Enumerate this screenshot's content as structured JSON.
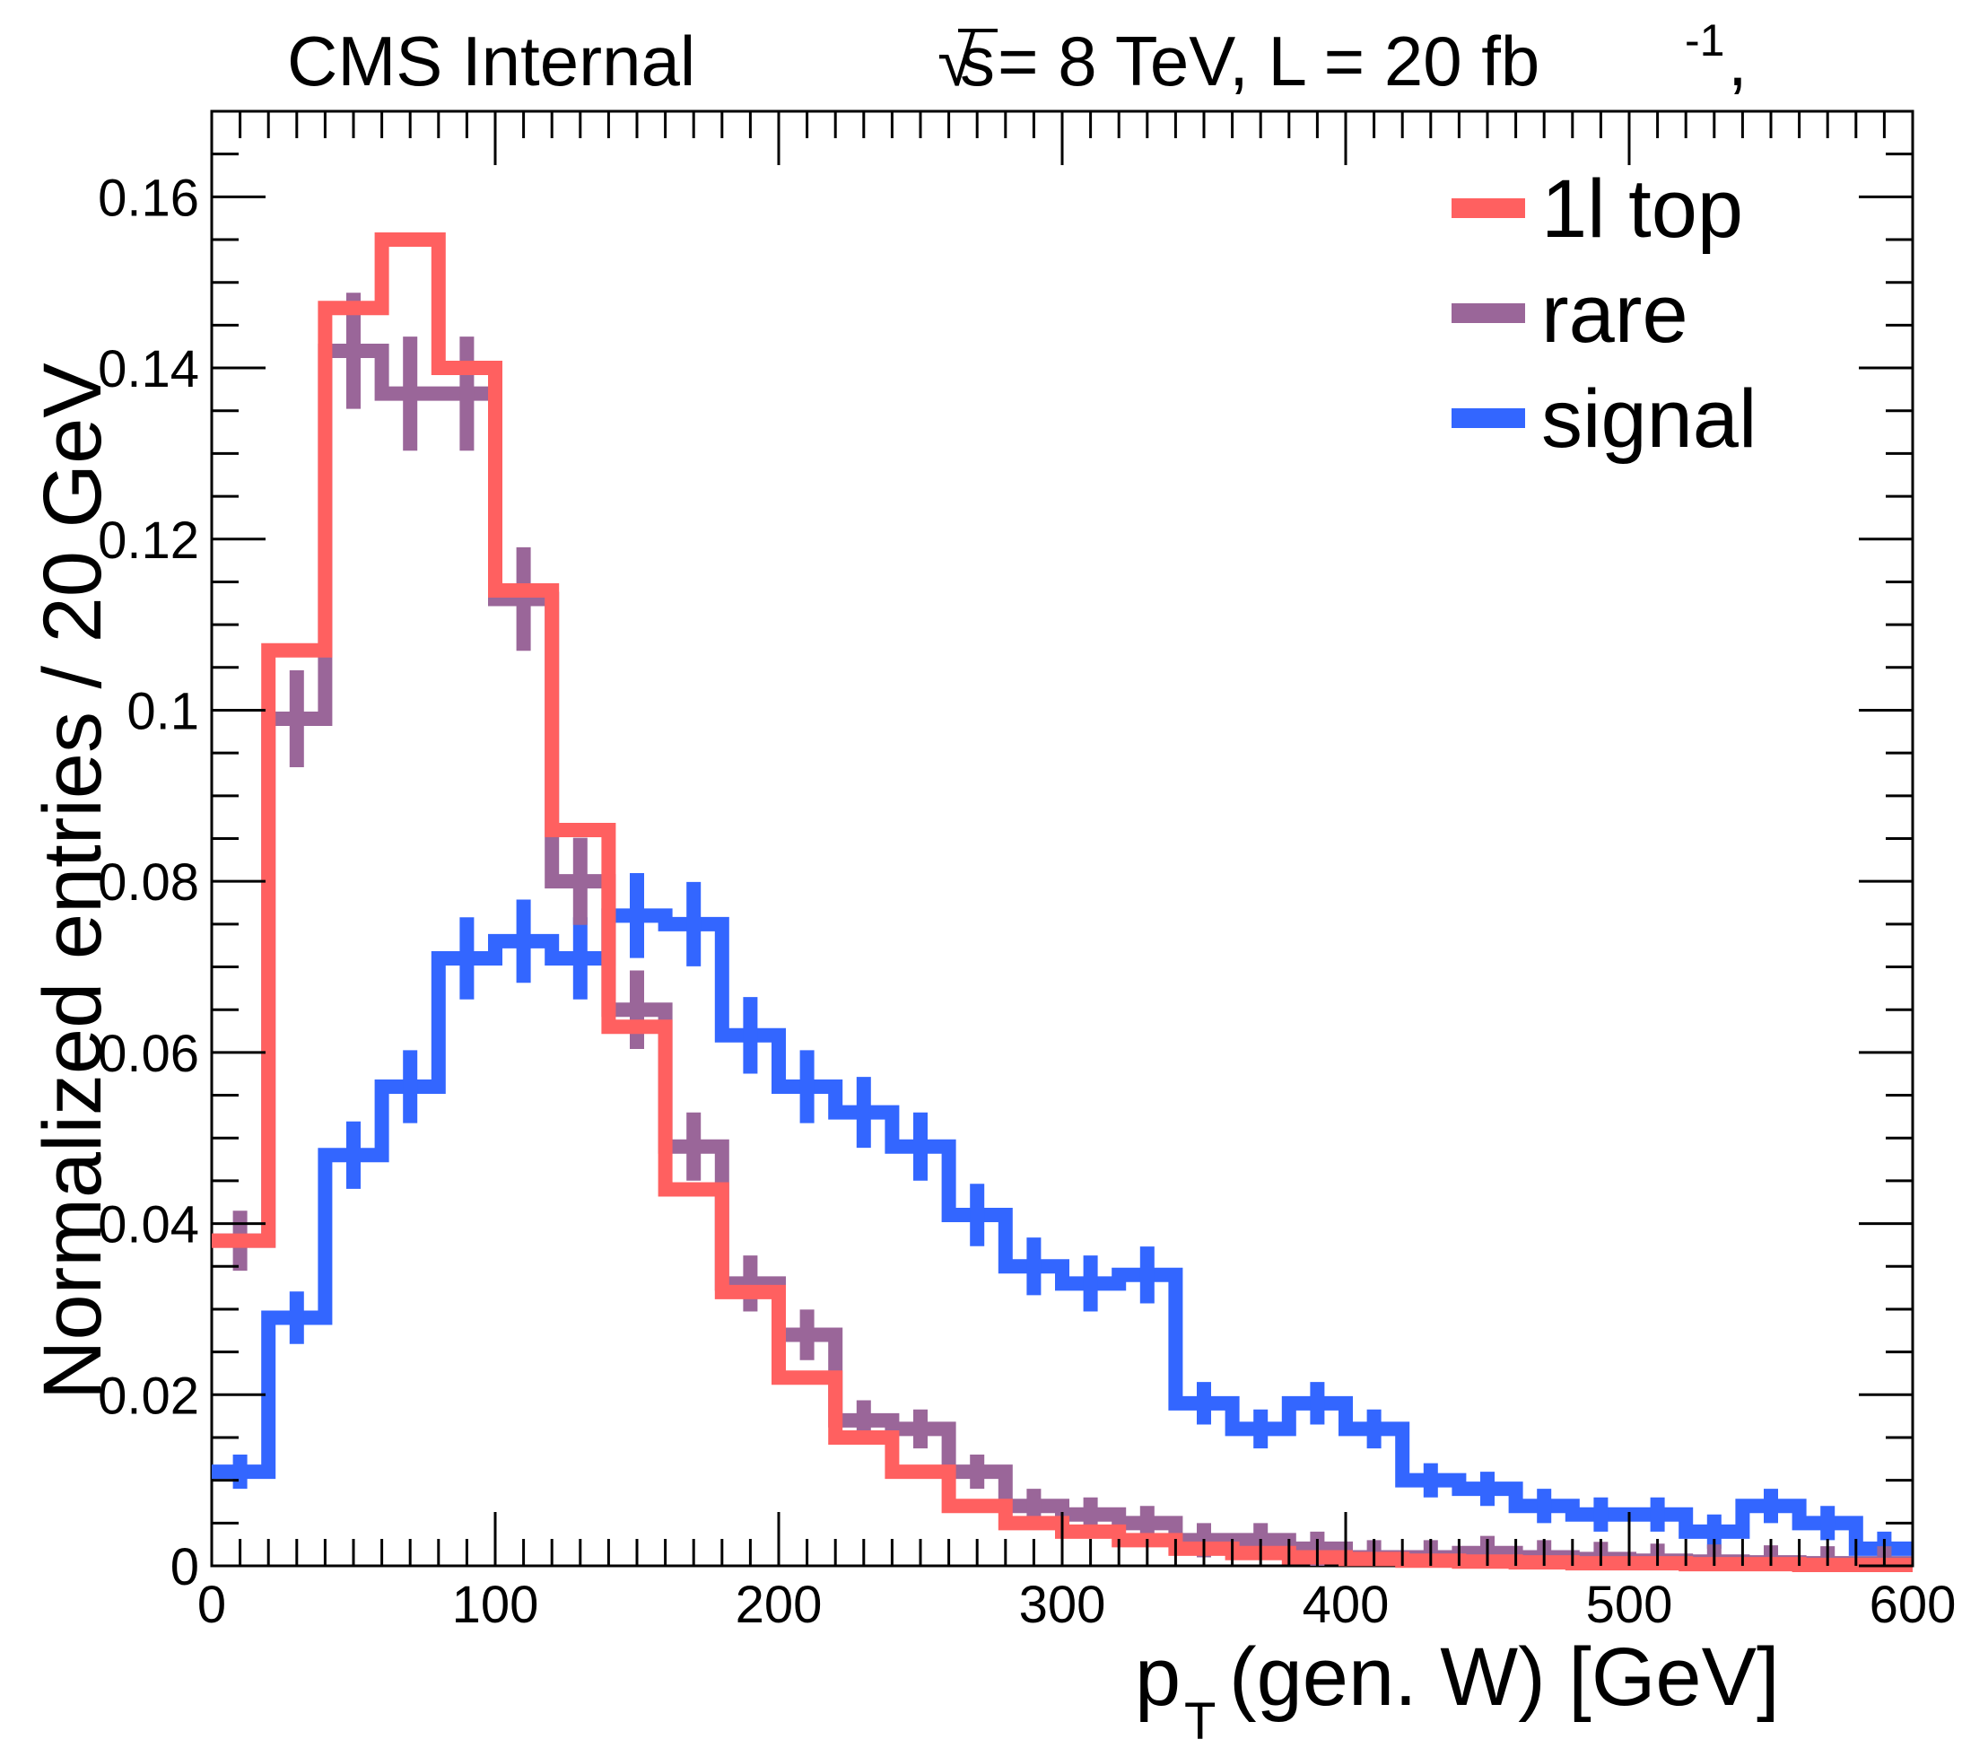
{
  "header": {
    "left": "CMS Internal",
    "right_sqrt": "s",
    "right_rest": " = 8 TeV, L = 20 fb",
    "right_sup": "-1",
    "right_comma": ","
  },
  "axes": {
    "xlabel_main": "p",
    "xlabel_sub": "T",
    "xlabel_rest": "(gen. W) [GeV]",
    "ylabel": "Normalized entries / 20 GeV"
  },
  "chart_data": {
    "type": "histogram",
    "bin_width": 20,
    "xlim": [
      0,
      600
    ],
    "ylim": [
      0,
      0.17
    ],
    "x_ticks": [
      0,
      100,
      200,
      300,
      400,
      500,
      600
    ],
    "x_tick_labels": [
      "0",
      "100",
      "200",
      "300",
      "400",
      "500",
      "600"
    ],
    "y_ticks": [
      0,
      0.02,
      0.04,
      0.06,
      0.08,
      0.1,
      0.12,
      0.14,
      0.16
    ],
    "y_tick_labels": [
      "0",
      "0.02",
      "0.04",
      "0.06",
      "0.08",
      "0.1",
      "0.12",
      "0.14",
      "0.16"
    ],
    "legend_position": "top-right",
    "series": [
      {
        "name": "1l top",
        "color": "#ff6060",
        "error_bars": false,
        "values": [
          0.038,
          0.107,
          0.147,
          0.155,
          0.14,
          0.114,
          0.086,
          0.063,
          0.044,
          0.032,
          0.022,
          0.015,
          0.011,
          0.007,
          0.005,
          0.004,
          0.003,
          0.002,
          0.0015,
          0.001,
          0.0008,
          0.0006,
          0.0005,
          0.0004,
          0.0003,
          0.0003,
          0.0002,
          0.0002,
          0.0001,
          0.0001
        ]
      },
      {
        "name": "rare",
        "color": "#9a6699",
        "error_bars": true,
        "values": [
          0.038,
          0.099,
          0.142,
          0.137,
          0.137,
          0.113,
          0.08,
          0.065,
          0.049,
          0.033,
          0.027,
          0.017,
          0.016,
          0.011,
          0.007,
          0.006,
          0.005,
          0.003,
          0.003,
          0.002,
          0.001,
          0.001,
          0.0015,
          0.001,
          0.0008,
          0.0006,
          0.0005,
          0.0004,
          0.0003,
          0.0003
        ]
      },
      {
        "name": "signal",
        "color": "#3366ff",
        "error_bars": true,
        "values": [
          0.011,
          0.029,
          0.048,
          0.056,
          0.071,
          0.073,
          0.071,
          0.076,
          0.075,
          0.062,
          0.056,
          0.053,
          0.049,
          0.041,
          0.035,
          0.033,
          0.034,
          0.019,
          0.016,
          0.019,
          0.016,
          0.01,
          0.009,
          0.007,
          0.006,
          0.006,
          0.004,
          0.007,
          0.005,
          0.002
        ]
      }
    ]
  }
}
